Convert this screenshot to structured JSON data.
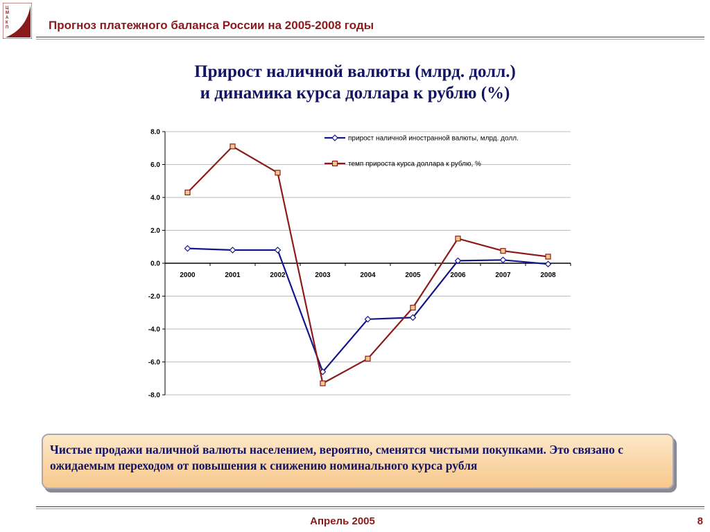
{
  "header": {
    "title": "Прогноз платежного баланса России на 2005-2008 годы",
    "logo_letters": "ЦМАКП"
  },
  "main_title": {
    "line1": "Прирост наличной валюты (млрд. долл.)",
    "line2": "и динамика курса доллара к рублю (%)"
  },
  "chart_data": {
    "type": "line",
    "categories": [
      "2000",
      "2001",
      "2002",
      "2003",
      "2004",
      "2005",
      "2006",
      "2007",
      "2008"
    ],
    "series": [
      {
        "name": "прирост наличной иностранной валюты, млрд. долл.",
        "color": "#14148c",
        "marker": "diamond",
        "values": [
          0.9,
          0.8,
          0.8,
          -6.6,
          -3.4,
          -3.3,
          0.15,
          0.2,
          -0.05
        ]
      },
      {
        "name": "темп прироста курса доллара к рублю, %",
        "color": "#8b1a1a",
        "marker": "square",
        "values": [
          4.3,
          7.1,
          5.5,
          -7.3,
          -5.8,
          -2.7,
          1.5,
          0.75,
          0.4
        ]
      }
    ],
    "y_ticks": [
      "8.0",
      "6.0",
      "4.0",
      "2.0",
      "0.0",
      "-2.0",
      "-4.0",
      "-6.0",
      "-8.0"
    ],
    "ylim": [
      -8,
      8
    ],
    "grid": true,
    "legend": "top-right"
  },
  "note": {
    "text": "Чистые продажи наличной валюты населением, вероятно, сменятся чистыми покупками. Это связано с ожидаемым переходом от повышения к снижению номинального курса рубля"
  },
  "footer": {
    "date": "Апрель 2005",
    "page": "8"
  },
  "colors": {
    "accent": "#8b1a1a",
    "title": "#141464",
    "note_bg": "#f9d3a0"
  }
}
